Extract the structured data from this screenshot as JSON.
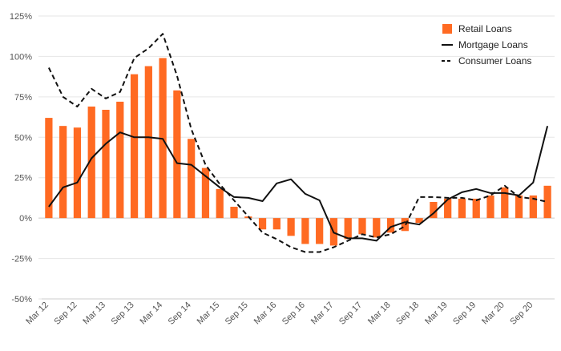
{
  "chart_data": {
    "type": "bar",
    "categories": [
      "Mar 12",
      "Jun 12",
      "Sep 12",
      "Dec 12",
      "Mar 13",
      "Jun 13",
      "Sep 13",
      "Dec 13",
      "Mar 14",
      "Jun 14",
      "Sep 14",
      "Dec 14",
      "Mar 15",
      "Jun 15",
      "Sep 15",
      "Dec 15",
      "Mar 16",
      "Jun 16",
      "Sep 16",
      "Dec 16",
      "Mar 17",
      "Jun 17",
      "Sep 17",
      "Dec 17",
      "Mar 18",
      "Jun 18",
      "Sep 18",
      "Dec 18",
      "Mar 19",
      "Jun 19",
      "Sep 19",
      "Dec 19",
      "Mar 20",
      "Jun 20",
      "Sep 20",
      "Dec 20"
    ],
    "x_tick_labels": [
      "Mar 12",
      "Sep 12",
      "Mar 13",
      "Sep 13",
      "Mar 14",
      "Sep 14",
      "Mar 15",
      "Sep 15",
      "Mar 16",
      "Sep 16",
      "Mar 17",
      "Sep 17",
      "Mar 18",
      "Sep 18",
      "Mar 19",
      "Sep 19",
      "Mar 20",
      "Sep 20"
    ],
    "y_tick_labels": [
      "125%",
      "100%",
      "75%",
      "50%",
      "25%",
      "0%",
      "-25%",
      "-50%"
    ],
    "y_ticks": [
      125,
      100,
      75,
      50,
      25,
      0,
      -25,
      -50
    ],
    "ylim": [
      -50,
      125
    ],
    "grid": true,
    "legend_position": "top-right",
    "series": [
      {
        "name": "Retail Loans",
        "kind": "bar",
        "color": "#ff6a22",
        "values": [
          62,
          57,
          56,
          69,
          67,
          72,
          89,
          94,
          99,
          79,
          49,
          31,
          18,
          7,
          1,
          -7,
          -7,
          -11,
          -16,
          -16,
          -17,
          -13,
          -10,
          -12,
          -9,
          -8,
          -3,
          10,
          12,
          12,
          12,
          14,
          19,
          14,
          14,
          20
        ]
      },
      {
        "name": "Mortgage Loans",
        "kind": "line",
        "color": "#111111",
        "dash": "solid",
        "values": [
          7,
          19,
          22,
          37,
          46,
          53,
          50,
          50,
          49,
          34,
          33,
          26,
          19,
          13,
          12.5,
          10.5,
          21.5,
          24,
          15,
          11,
          -9,
          -12.5,
          -12.5,
          -14,
          -5.5,
          -2.5,
          -4,
          3,
          11.5,
          16,
          18,
          15.5,
          15.5,
          14,
          22,
          57
        ]
      },
      {
        "name": "Consumer Loans",
        "kind": "line",
        "color": "#111111",
        "dash": "dashed",
        "values": [
          93,
          75,
          69,
          80,
          74,
          78,
          99,
          105,
          114,
          88,
          55,
          33,
          21,
          11,
          1,
          -9,
          -13,
          -18,
          -21,
          -21,
          -18,
          -14,
          -10,
          -12,
          -10,
          -5,
          13,
          13,
          12.5,
          12.5,
          11,
          14,
          20,
          13,
          12,
          10
        ]
      }
    ]
  }
}
